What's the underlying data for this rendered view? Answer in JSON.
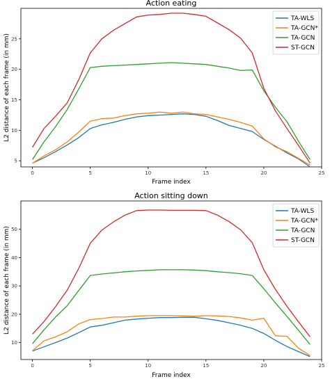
{
  "chart_data": [
    {
      "type": "line",
      "title": "Action eating",
      "xlabel": "Frame index",
      "ylabel": "L2 distance of each frame (in mm)",
      "xlim": [
        -1,
        25
      ],
      "ylim": [
        4,
        30
      ],
      "xticks": [
        0,
        5,
        10,
        15,
        20,
        25
      ],
      "yticks": [
        5,
        10,
        15,
        20,
        25
      ],
      "grid": false,
      "legend_position": "top-right",
      "x": [
        0,
        1,
        2,
        3,
        4,
        5,
        6,
        7,
        8,
        9,
        10,
        11,
        12,
        13,
        14,
        15,
        16,
        17,
        18,
        19,
        20,
        21,
        22,
        23,
        24
      ],
      "series": [
        {
          "name": "TA-WLS",
          "color": "#1f77b4",
          "values": [
            4.6,
            5.5,
            6.5,
            7.6,
            8.8,
            10.3,
            10.9,
            11.3,
            11.8,
            12.2,
            12.4,
            12.5,
            12.6,
            12.7,
            12.6,
            12.3,
            11.6,
            10.8,
            10.3,
            9.8,
            8.5,
            7.4,
            6.3,
            5.3,
            4.0
          ]
        },
        {
          "name": "TA-GCN*",
          "color": "#ff7f0e",
          "values": [
            4.6,
            5.8,
            6.8,
            8.1,
            9.7,
            11.5,
            11.9,
            12.0,
            12.4,
            12.7,
            12.8,
            13.0,
            12.8,
            13.0,
            12.7,
            12.6,
            12.2,
            11.8,
            11.3,
            10.7,
            8.6,
            7.3,
            6.5,
            5.4,
            4.3
          ]
        },
        {
          "name": "TA-GCN",
          "color": "#2ca02c",
          "values": [
            5.2,
            8.1,
            10.6,
            13.4,
            16.8,
            20.3,
            20.5,
            20.6,
            20.7,
            20.8,
            20.9,
            21.0,
            21.1,
            21.0,
            20.9,
            20.8,
            20.5,
            20.2,
            19.8,
            19.9,
            16.5,
            13.8,
            11.4,
            8.2,
            5.2
          ]
        },
        {
          "name": "ST-GCN",
          "color": "#d62728",
          "values": [
            7.2,
            10.3,
            12.3,
            14.5,
            18.3,
            22.7,
            25.0,
            26.4,
            27.5,
            28.6,
            28.9,
            29.0,
            29.2,
            29.2,
            29.0,
            28.7,
            27.6,
            26.5,
            25.1,
            22.7,
            16.9,
            13.2,
            10.3,
            7.5,
            4.6
          ]
        }
      ]
    },
    {
      "type": "line",
      "title": "Action sitting down",
      "xlabel": "Frame index",
      "ylabel": "L2 distance of each frame (in mm)",
      "xlim": [
        -1,
        25
      ],
      "ylim": [
        4,
        60
      ],
      "xticks": [
        0,
        5,
        10,
        15,
        20,
        25
      ],
      "yticks": [
        10,
        20,
        30,
        40,
        50
      ],
      "grid": false,
      "legend_position": "top-right",
      "x": [
        0,
        1,
        2,
        3,
        4,
        5,
        6,
        7,
        8,
        9,
        10,
        11,
        12,
        13,
        14,
        15,
        16,
        17,
        18,
        19,
        20,
        21,
        22,
        23,
        24
      ],
      "series": [
        {
          "name": "TA-WLS",
          "color": "#1f77b4",
          "values": [
            7.0,
            8.5,
            10.0,
            11.6,
            13.5,
            15.5,
            16.1,
            17.0,
            17.9,
            18.3,
            18.6,
            18.8,
            18.8,
            18.9,
            18.9,
            18.4,
            17.8,
            17.0,
            16.1,
            15.0,
            13.2,
            10.8,
            8.6,
            6.8,
            5.0
          ]
        },
        {
          "name": "TA-GCN*",
          "color": "#ff7f0e",
          "values": [
            7.1,
            10.6,
            12.0,
            13.8,
            16.6,
            18.1,
            18.5,
            19.0,
            19.0,
            19.3,
            19.5,
            19.5,
            19.5,
            19.4,
            19.3,
            19.5,
            19.4,
            19.2,
            18.7,
            17.9,
            18.6,
            12.4,
            12.2,
            8.0,
            5.4
          ]
        },
        {
          "name": "TA-GCN",
          "color": "#2ca02c",
          "values": [
            9.6,
            14.5,
            19.0,
            23.0,
            28.4,
            33.7,
            34.2,
            34.6,
            35.0,
            35.3,
            35.5,
            35.7,
            35.7,
            35.7,
            35.6,
            35.4,
            35.0,
            34.7,
            34.3,
            33.7,
            29.0,
            24.0,
            19.2,
            14.3,
            9.3
          ]
        },
        {
          "name": "ST-GCN",
          "color": "#d62728",
          "values": [
            13.0,
            17.4,
            22.7,
            28.5,
            36.2,
            45.1,
            49.7,
            52.6,
            55.0,
            56.6,
            56.8,
            56.8,
            56.7,
            56.7,
            56.7,
            56.6,
            55.0,
            52.7,
            49.8,
            45.3,
            35.7,
            28.8,
            22.8,
            17.3,
            12.0
          ]
        }
      ]
    }
  ]
}
